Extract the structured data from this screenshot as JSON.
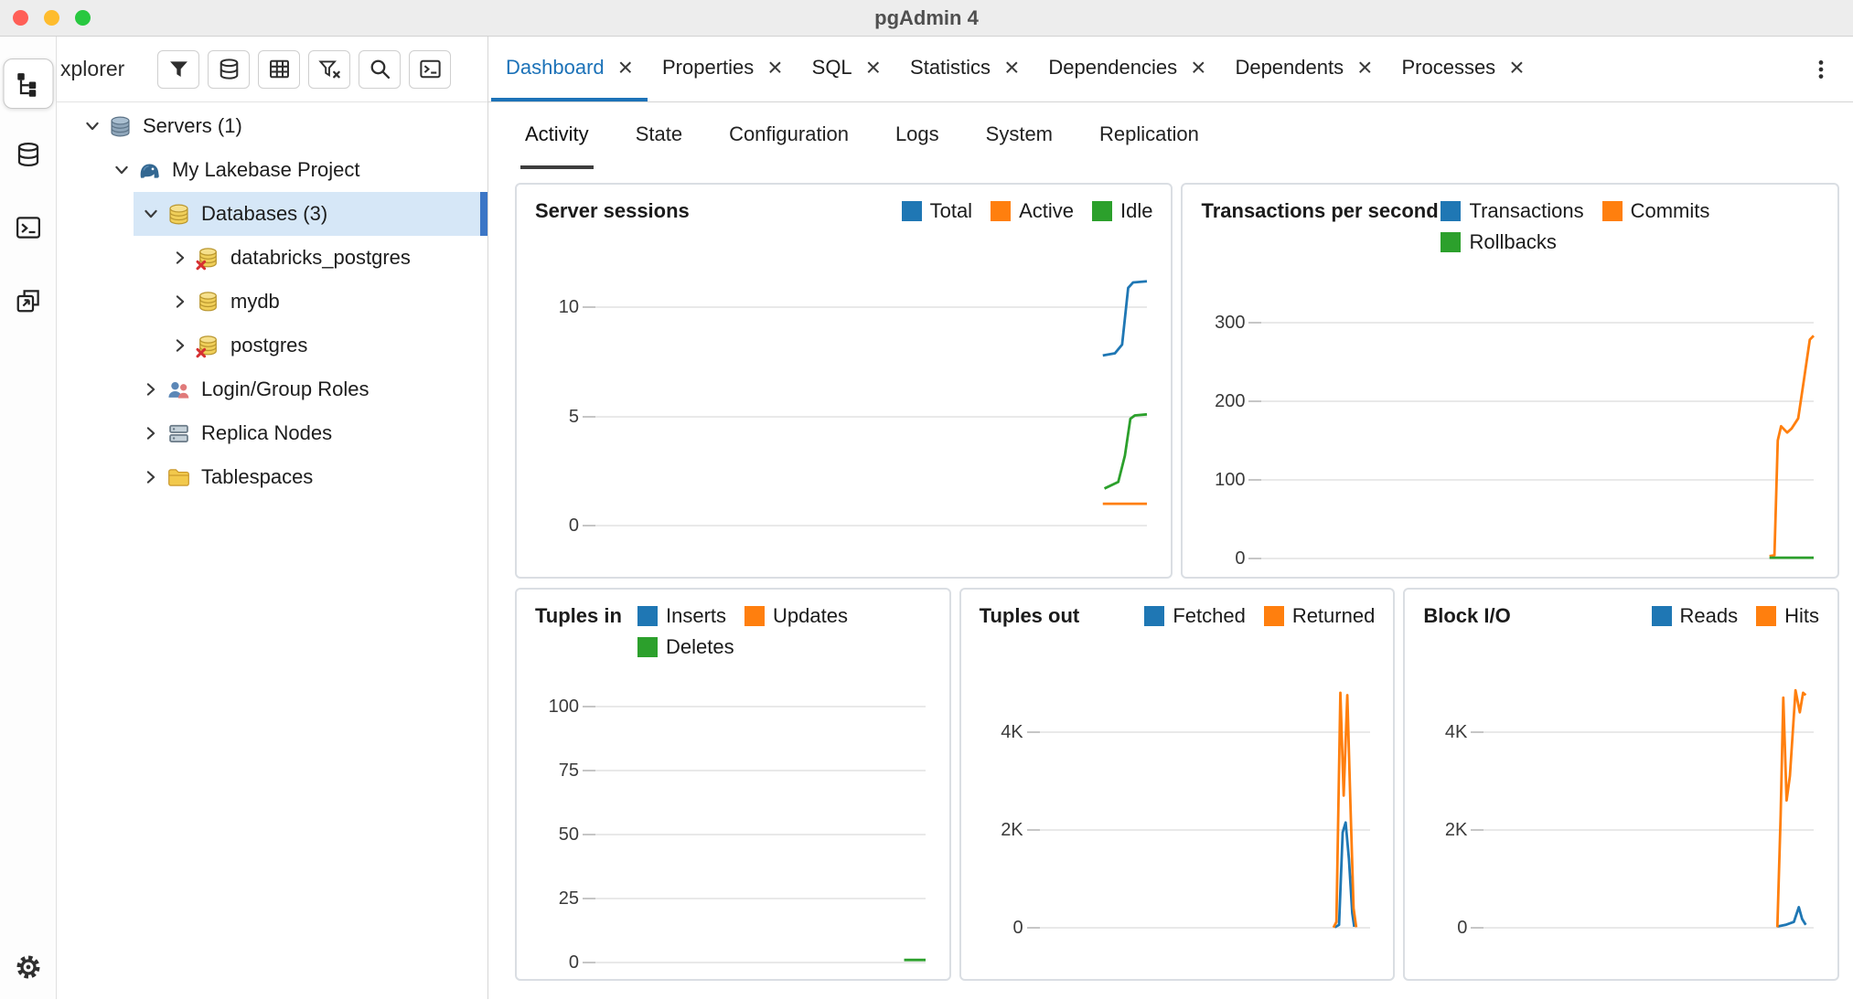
{
  "window": {
    "title": "pgAdmin 4"
  },
  "icons": {
    "close": "×"
  },
  "colors": {
    "accent": "#1c72b8",
    "selection": "#d6e7f7",
    "indicator": "#3c76c6",
    "traffic_red": "#ff5f57",
    "traffic_yellow": "#febc2e",
    "traffic_green": "#28c840"
  },
  "activity_bar": {
    "items": [
      {
        "name": "object-explorer",
        "active": true
      },
      {
        "name": "query-tool",
        "active": false
      },
      {
        "name": "psql-terminal",
        "active": false
      },
      {
        "name": "detach-window",
        "active": false
      },
      {
        "name": "settings",
        "active": false
      }
    ]
  },
  "sidebar": {
    "header_title": "xplorer",
    "tools": [
      "filter",
      "database",
      "grid",
      "filter-clear",
      "search",
      "console"
    ],
    "tree": [
      {
        "label": "Servers (1)",
        "depth": 0,
        "expanded": true,
        "selected": false
      },
      {
        "label": "My Lakebase Project",
        "depth": 1,
        "expanded": true,
        "selected": false
      },
      {
        "label": "Databases (3)",
        "depth": 2,
        "expanded": true,
        "selected": true
      },
      {
        "label": "databricks_postgres",
        "depth": 3,
        "expanded": false,
        "selected": false
      },
      {
        "label": "mydb",
        "depth": 3,
        "expanded": false,
        "selected": false
      },
      {
        "label": "postgres",
        "depth": 3,
        "expanded": false,
        "selected": false
      },
      {
        "label": "Login/Group Roles",
        "depth": 2,
        "expanded": false,
        "selected": false
      },
      {
        "label": "Replica Nodes",
        "depth": 2,
        "expanded": false,
        "selected": false
      },
      {
        "label": "Tablespaces",
        "depth": 2,
        "expanded": false,
        "selected": false
      }
    ]
  },
  "tabs": {
    "items": [
      {
        "label": "Dashboard",
        "active": true,
        "closable": true
      },
      {
        "label": "Properties",
        "active": false,
        "closable": true
      },
      {
        "label": "SQL",
        "active": false,
        "closable": true
      },
      {
        "label": "Statistics",
        "active": false,
        "closable": true
      },
      {
        "label": "Dependencies",
        "active": false,
        "closable": true
      },
      {
        "label": "Dependents",
        "active": false,
        "closable": true
      },
      {
        "label": "Processes",
        "active": false,
        "closable": true
      }
    ]
  },
  "subtabs": {
    "items": [
      {
        "label": "Activity",
        "active": true
      },
      {
        "label": "State",
        "active": false
      },
      {
        "label": "Configuration",
        "active": false
      },
      {
        "label": "Logs",
        "active": false
      },
      {
        "label": "System",
        "active": false
      },
      {
        "label": "Replication",
        "active": false
      }
    ]
  },
  "chart_data": [
    {
      "type": "line",
      "title": "Server sessions",
      "xlabel": "",
      "ylabel": "",
      "ylim": [
        0,
        12.7
      ],
      "grid": true,
      "legend_position": "top-right",
      "ticks": [
        {
          "label": "10",
          "value": 10
        },
        {
          "label": "5",
          "value": 5
        },
        {
          "label": "0",
          "value": 0
        }
      ],
      "series": [
        {
          "name": "Total",
          "color": "#1f77b4",
          "points": [
            [
              0.92,
              7.8
            ],
            [
              0.942,
              7.9
            ],
            [
              0.955,
              8.3
            ],
            [
              0.966,
              10.9
            ],
            [
              0.975,
              11.15
            ],
            [
              1.0,
              11.2
            ]
          ]
        },
        {
          "name": "Active",
          "color": "#ff7f0e",
          "points": [
            [
              0.92,
              1.0
            ],
            [
              1.0,
              1.0
            ]
          ]
        },
        {
          "name": "Idle",
          "color": "#2ca02c",
          "points": [
            [
              0.923,
              1.7
            ],
            [
              0.948,
              2.0
            ],
            [
              0.96,
              3.2
            ],
            [
              0.97,
              4.9
            ],
            [
              0.978,
              5.05
            ],
            [
              1.0,
              5.1
            ]
          ]
        }
      ]
    },
    {
      "type": "line",
      "title": "Transactions per second",
      "xlabel": "",
      "ylabel": "",
      "ylim": [
        0,
        375
      ],
      "grid": true,
      "legend_position": "top-right",
      "ticks": [
        {
          "label": "300",
          "value": 300
        },
        {
          "label": "200",
          "value": 200
        },
        {
          "label": "100",
          "value": 100
        },
        {
          "label": "0",
          "value": 0
        }
      ],
      "series": [
        {
          "name": "Transactions",
          "color": "#1f77b4",
          "points": []
        },
        {
          "name": "Commits",
          "color": "#ff7f0e",
          "points": [
            [
              0.92,
              3
            ],
            [
              0.929,
              4
            ],
            [
              0.935,
              150
            ],
            [
              0.941,
              168
            ],
            [
              0.952,
              160
            ],
            [
              0.96,
              165
            ],
            [
              0.972,
              178
            ],
            [
              0.983,
              230
            ],
            [
              0.993,
              278
            ],
            [
              1.0,
              283
            ]
          ]
        },
        {
          "name": "Rollbacks",
          "color": "#2ca02c",
          "points": [
            [
              0.92,
              1
            ],
            [
              1.0,
              1
            ]
          ]
        }
      ]
    },
    {
      "type": "line",
      "title": "Tuples in",
      "xlabel": "",
      "ylabel": "",
      "ylim": [
        0,
        115
      ],
      "grid": true,
      "legend_position": "top-right",
      "ticks": [
        {
          "label": "100",
          "value": 100
        },
        {
          "label": "75",
          "value": 75
        },
        {
          "label": "50",
          "value": 50
        },
        {
          "label": "25",
          "value": 25
        },
        {
          "label": "0",
          "value": 0
        }
      ],
      "series": [
        {
          "name": "Inserts",
          "color": "#1f77b4",
          "points": []
        },
        {
          "name": "Updates",
          "color": "#ff7f0e",
          "points": []
        },
        {
          "name": "Deletes",
          "color": "#2ca02c",
          "points": [
            [
              0.935,
              1
            ],
            [
              1.0,
              1
            ]
          ]
        }
      ]
    },
    {
      "type": "line",
      "title": "Tuples out",
      "xlabel": "",
      "ylabel": "",
      "ylim": [
        0,
        5600
      ],
      "grid": true,
      "legend_position": "top-right",
      "ticks": [
        {
          "label": "4K",
          "value": 4000
        },
        {
          "label": "2K",
          "value": 2000
        },
        {
          "label": "0",
          "value": 0
        }
      ],
      "series": [
        {
          "name": "Fetched",
          "color": "#1f77b4",
          "points": [
            [
              0.893,
              10
            ],
            [
              0.906,
              60
            ],
            [
              0.917,
              1950
            ],
            [
              0.926,
              2150
            ],
            [
              0.936,
              1400
            ],
            [
              0.946,
              300
            ],
            [
              0.952,
              20
            ]
          ]
        },
        {
          "name": "Returned",
          "color": "#ff7f0e",
          "points": [
            [
              0.889,
              5
            ],
            [
              0.898,
              120
            ],
            [
              0.91,
              4800
            ],
            [
              0.92,
              2700
            ],
            [
              0.931,
              4750
            ],
            [
              0.941,
              2400
            ],
            [
              0.95,
              400
            ],
            [
              0.958,
              10
            ]
          ]
        }
      ]
    },
    {
      "type": "line",
      "title": "Block I/O",
      "xlabel": "",
      "ylabel": "",
      "ylim": [
        0,
        5600
      ],
      "grid": true,
      "legend_position": "top-right",
      "ticks": [
        {
          "label": "4K",
          "value": 4000
        },
        {
          "label": "2K",
          "value": 2000
        },
        {
          "label": "0",
          "value": 0
        }
      ],
      "series": [
        {
          "name": "Reads",
          "color": "#1f77b4",
          "points": [
            [
              0.89,
              25
            ],
            [
              0.915,
              60
            ],
            [
              0.94,
              120
            ],
            [
              0.955,
              420
            ],
            [
              0.965,
              180
            ],
            [
              0.976,
              60
            ]
          ]
        },
        {
          "name": "Hits",
          "color": "#ff7f0e",
          "points": [
            [
              0.89,
              10
            ],
            [
              0.9,
              2300
            ],
            [
              0.908,
              4700
            ],
            [
              0.918,
              2600
            ],
            [
              0.928,
              3100
            ],
            [
              0.945,
              4850
            ],
            [
              0.958,
              4400
            ],
            [
              0.968,
              4800
            ],
            [
              0.976,
              4750
            ]
          ]
        }
      ]
    }
  ]
}
